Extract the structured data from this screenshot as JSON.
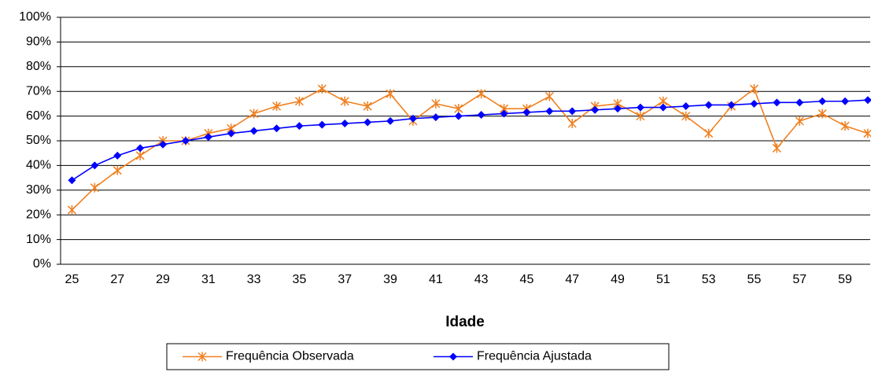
{
  "chart_data": {
    "type": "line",
    "x_label": "Idade",
    "categories": [
      "25",
      null,
      "27",
      null,
      "29",
      null,
      "31",
      null,
      "33",
      null,
      "35",
      null,
      "37",
      null,
      "39",
      null,
      "41",
      null,
      "43",
      null,
      "45",
      null,
      "47",
      null,
      "49",
      null,
      "51",
      null,
      "53",
      null,
      "55",
      null,
      "57",
      null,
      "59",
      null
    ],
    "series": [
      {
        "name": "Frequência Observada",
        "color": "#f08020",
        "marker": "asterisk",
        "values": [
          22,
          31,
          38,
          44,
          50,
          50,
          53,
          55,
          61,
          64,
          66,
          71,
          66,
          64,
          69,
          58,
          65,
          63,
          69,
          63,
          63,
          68,
          57,
          64,
          65,
          60,
          66,
          60,
          53,
          64,
          71,
          47,
          58,
          61,
          56,
          53
        ]
      },
      {
        "name": "Frequência Ajustada",
        "color": "#0000ff",
        "marker": "diamond",
        "values": [
          34,
          40,
          44,
          47,
          48.5,
          50,
          51.5,
          53,
          54,
          55,
          56,
          56.5,
          57,
          57.5,
          58,
          59,
          59.5,
          60,
          60.5,
          61,
          61.5,
          62,
          62,
          62.5,
          63,
          63.5,
          63.5,
          64,
          64.5,
          64.5,
          65,
          65.5,
          65.5,
          66,
          66,
          66.5
        ]
      }
    ],
    "ylim": [
      0,
      100
    ],
    "yticks": [
      {
        "value": 0,
        "label": "0%"
      },
      {
        "value": 10,
        "label": "10%"
      },
      {
        "value": 20,
        "label": "20%"
      },
      {
        "value": 30,
        "label": "30%"
      },
      {
        "value": 40,
        "label": "40%"
      },
      {
        "value": 50,
        "label": "50%"
      },
      {
        "value": 60,
        "label": "60%"
      },
      {
        "value": 70,
        "label": "70%"
      },
      {
        "value": 80,
        "label": "80%"
      },
      {
        "value": 90,
        "label": "90%"
      },
      {
        "value": 100,
        "label": "100%"
      }
    ],
    "grid": true,
    "legend": "bottom"
  }
}
